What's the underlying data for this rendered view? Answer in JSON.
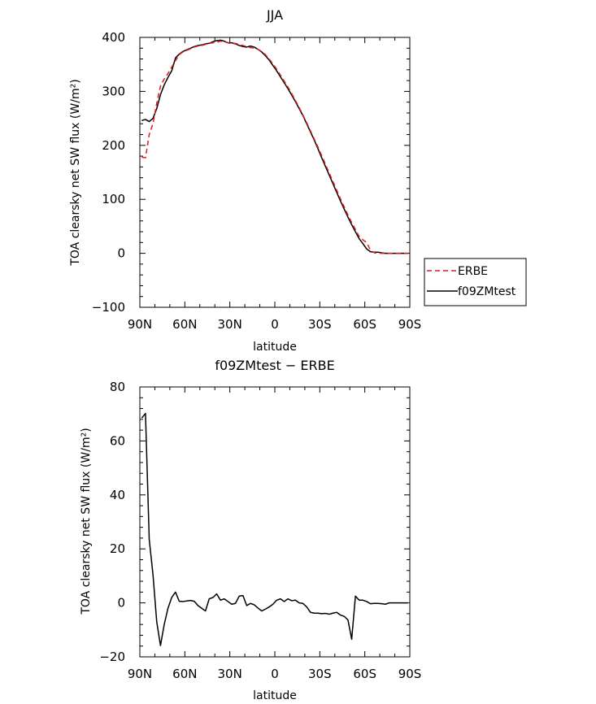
{
  "chart_data": [
    {
      "type": "line",
      "title": "JJA",
      "xlabel": "latitude",
      "ylabel": "TOA clearsky net SW flux (W/m²)",
      "xlim": [
        90,
        -90
      ],
      "ylim": [
        -100,
        400
      ],
      "xticks": [
        90,
        60,
        30,
        0,
        -30,
        -60,
        -90
      ],
      "xtick_labels": [
        "90N",
        "60N",
        "30N",
        "0",
        "30S",
        "60S",
        "90S"
      ],
      "yticks": [
        -100,
        0,
        100,
        200,
        300,
        400
      ],
      "ytick_labels": [
        "−100",
        "0",
        "100",
        "200",
        "300",
        "400"
      ],
      "legend_position": "right",
      "series": [
        {
          "name": "ERBE",
          "color": "#e41a1c",
          "dash": "dashed",
          "x": [
            88.75,
            86.25,
            83.75,
            81.25,
            78.75,
            76.25,
            73.75,
            71.25,
            68.75,
            66.25,
            63.75,
            61.25,
            58.75,
            56.25,
            53.75,
            51.25,
            48.75,
            46.25,
            43.75,
            41.25,
            38.75,
            36.25,
            33.75,
            31.25,
            28.75,
            26.25,
            23.75,
            21.25,
            18.75,
            16.25,
            13.75,
            11.25,
            8.75,
            6.25,
            3.75,
            1.25,
            -1.25,
            -3.75,
            -6.25,
            -8.75,
            -11.25,
            -13.75,
            -16.25,
            -18.75,
            -21.25,
            -23.75,
            -26.25,
            -28.75,
            -31.25,
            -33.75,
            -36.25,
            -38.75,
            -41.25,
            -43.75,
            -46.25,
            -48.75,
            -51.25,
            -53.75,
            -56.25,
            -58.75,
            -61.25,
            -63.75,
            -66.25,
            -68.75,
            -71.25,
            -73.75,
            -76.25,
            -78.75,
            -81.25,
            -83.75,
            -86.25,
            -88.75
          ],
          "values": [
            178,
            177,
            220,
            240,
            278,
            310,
            323,
            333,
            345,
            357,
            368,
            373,
            376,
            379,
            382,
            384,
            385,
            387,
            389,
            390,
            391,
            393,
            392,
            390,
            388,
            389,
            387,
            385,
            383,
            381,
            380,
            378,
            374,
            368,
            360,
            351,
            341,
            330,
            319,
            308,
            296,
            283,
            270,
            256,
            242,
            227,
            212,
            197,
            181,
            165,
            149,
            133,
            117,
            101,
            86,
            71,
            57,
            44,
            31,
            25,
            20,
            6,
            1,
            0,
            0,
            0,
            0,
            0,
            0,
            0,
            0,
            0
          ]
        },
        {
          "name": "f09ZMtest",
          "color": "#000000",
          "dash": "solid",
          "x": [
            88.75,
            86.25,
            83.75,
            81.25,
            78.75,
            76.25,
            73.75,
            71.25,
            68.75,
            66.25,
            63.75,
            61.25,
            58.75,
            56.25,
            53.75,
            51.25,
            48.75,
            46.25,
            43.75,
            41.25,
            38.75,
            36.25,
            33.75,
            31.25,
            28.75,
            26.25,
            23.75,
            21.25,
            18.75,
            16.25,
            13.75,
            11.25,
            8.75,
            6.25,
            3.75,
            1.25,
            -1.25,
            -3.75,
            -6.25,
            -8.75,
            -11.25,
            -13.75,
            -16.25,
            -18.75,
            -21.25,
            -23.75,
            -26.25,
            -28.75,
            -31.25,
            -33.75,
            -36.25,
            -38.75,
            -41.25,
            -43.75,
            -46.25,
            -48.75,
            -51.25,
            -53.75,
            -56.25,
            -58.75,
            -61.25,
            -63.75,
            -66.25,
            -68.75,
            -71.25,
            -73.75,
            -76.25,
            -78.75,
            -81.25,
            -83.75,
            -86.25,
            -88.75
          ],
          "values": [
            246,
            248,
            244,
            250,
            268,
            294,
            312,
            326,
            338,
            362,
            369,
            374,
            377,
            380,
            383,
            385,
            386,
            388,
            389,
            392,
            394,
            395,
            393,
            390,
            390,
            388,
            385,
            383,
            382,
            384,
            382,
            378,
            373,
            366,
            358,
            348,
            338,
            327,
            316,
            305,
            293,
            281,
            268,
            255,
            240,
            225,
            210,
            194,
            177,
            161,
            145,
            129,
            113,
            97,
            82,
            67,
            53,
            40,
            27,
            18,
            8,
            3,
            2,
            2,
            1,
            0,
            0,
            0,
            0,
            0,
            0,
            0
          ]
        }
      ]
    },
    {
      "type": "line",
      "title": "f09ZMtest − ERBE",
      "xlabel": "latitude",
      "ylabel": "TOA clearsky net SW flux (W/m²)",
      "xlim": [
        90,
        -90
      ],
      "ylim": [
        -20,
        80
      ],
      "xticks": [
        90,
        60,
        30,
        0,
        -30,
        -60,
        -90
      ],
      "xtick_labels": [
        "90N",
        "60N",
        "30N",
        "0",
        "30S",
        "60S",
        "90S"
      ],
      "yticks": [
        -20,
        0,
        20,
        40,
        60,
        80
      ],
      "ytick_labels": [
        "−20",
        "0",
        "20",
        "40",
        "60",
        "80"
      ],
      "series": [
        {
          "color": "#000000",
          "dash": "solid",
          "x": [
            88.75,
            86.25,
            83.75,
            81.25,
            78.75,
            76.25,
            73.75,
            71.25,
            68.75,
            66.25,
            63.75,
            61.25,
            58.75,
            56.25,
            53.75,
            51.25,
            48.75,
            46.25,
            43.75,
            41.25,
            38.75,
            36.25,
            33.75,
            31.25,
            28.75,
            26.25,
            23.75,
            21.25,
            18.75,
            16.25,
            13.75,
            11.25,
            8.75,
            6.25,
            3.75,
            1.25,
            -1.25,
            -3.75,
            -6.25,
            -8.75,
            -11.25,
            -13.75,
            -16.25,
            -18.75,
            -21.25,
            -23.75,
            -26.25,
            -28.75,
            -31.25,
            -33.75,
            -36.25,
            -38.75,
            -41.25,
            -43.75,
            -46.25,
            -48.75,
            -51.25,
            -53.75,
            -56.25,
            -58.75,
            -61.25,
            -63.75,
            -66.25,
            -68.75,
            -71.25,
            -73.75,
            -76.25,
            -78.75,
            -81.25,
            -83.75,
            -86.25,
            -88.75
          ],
          "values": [
            68.5,
            70.2,
            23.5,
            10.5,
            -7,
            -15.8,
            -8,
            -2,
            2,
            4,
            0.6,
            0.5,
            0.7,
            0.9,
            0.6,
            -1,
            -2,
            -3,
            1.5,
            2,
            3.3,
            1,
            1.5,
            0.5,
            -0.5,
            -0.2,
            2.5,
            2.7,
            -1,
            -0.2,
            -0.7,
            -1.9,
            -3,
            -2.3,
            -1.5,
            -0.5,
            1,
            1.5,
            0.5,
            1.5,
            0.8,
            1,
            0,
            -0.2,
            -1.5,
            -3.5,
            -3.8,
            -3.8,
            -4,
            -3.9,
            -4.2,
            -3.8,
            -3.5,
            -4.5,
            -5,
            -6.3,
            -13.5,
            2.5,
            1,
            1,
            0.5,
            -0.3,
            -0.2,
            -0.2,
            -0.3,
            -0.5,
            0,
            0,
            0,
            0,
            0,
            0
          ]
        }
      ]
    }
  ]
}
